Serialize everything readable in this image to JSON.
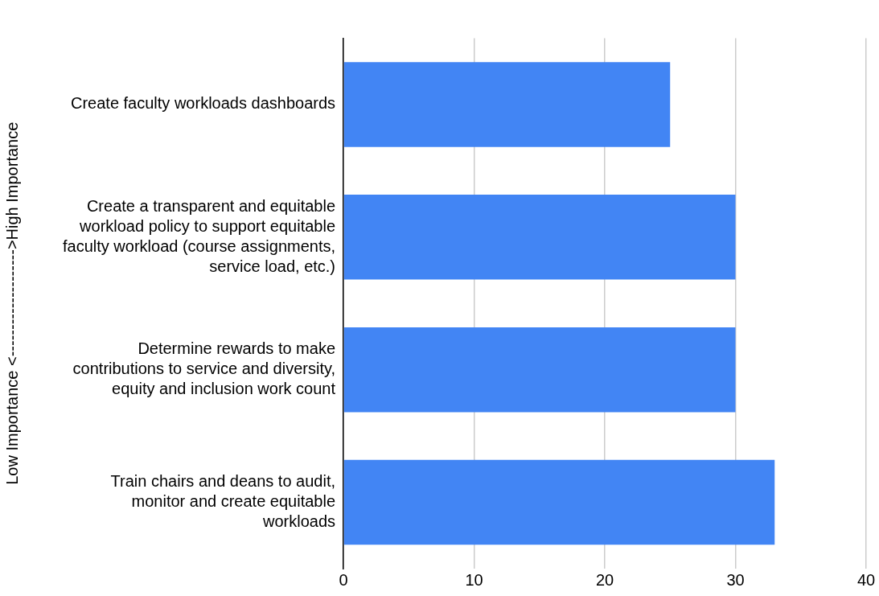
{
  "chart_data": {
    "type": "bar",
    "orientation": "horizontal",
    "ylabel": "Low Importance <-------------------->High Importance",
    "categories": [
      "Create faculty workloads dashboards",
      "Create a transparent and equitable workload policy to support equitable faculty workload (course assignments, service load, etc.)",
      "Determine rewards to make contributions to service and diversity, equity and inclusion work count",
      "Train chairs and deans to audit, monitor and create equitable workloads"
    ],
    "values": [
      25,
      30,
      30,
      33
    ],
    "color": "#4285f4",
    "xlim": [
      0,
      40
    ],
    "xticks": [
      0,
      10,
      20,
      30,
      40
    ],
    "grid": "x",
    "legend": false
  }
}
